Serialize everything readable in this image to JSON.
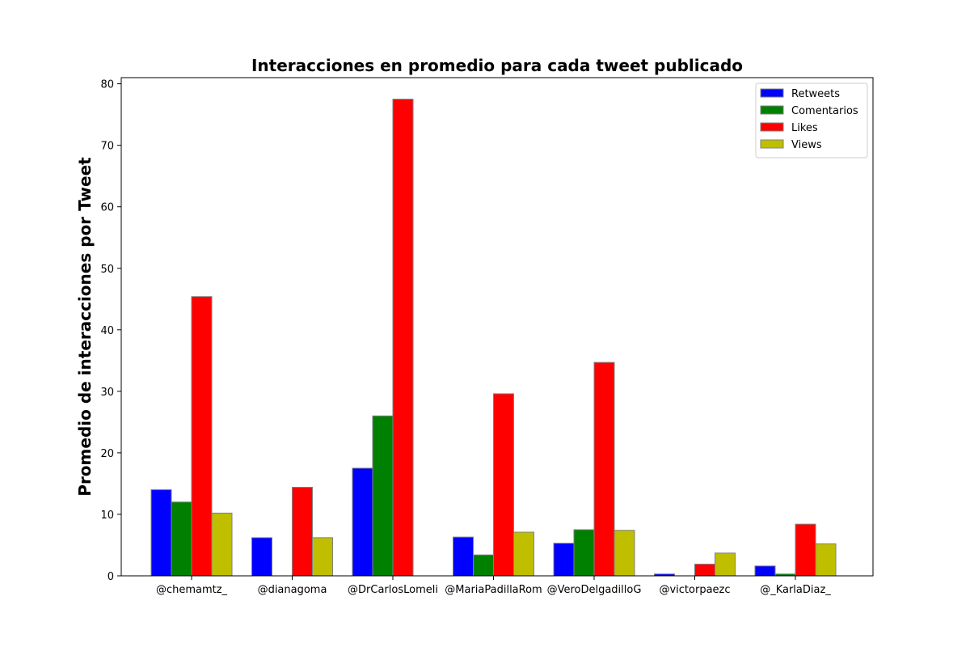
{
  "chart_data": {
    "type": "bar",
    "title": "Interacciones en promedio para cada tweet publicado",
    "xlabel": "",
    "ylabel": "Promedio de interacciones por Tweet",
    "categories": [
      "@chemamtz_",
      "@dianagoma",
      "@DrCarlosLomeli",
      "@MariaPadillaRom",
      "@VeroDelgadilloG",
      "@victorpaezc",
      "@_KarlaDiaz_"
    ],
    "series": [
      {
        "name": "Retweets",
        "color": "#0000ff",
        "values": [
          14.0,
          6.2,
          17.5,
          6.3,
          5.3,
          0.3,
          1.6
        ]
      },
      {
        "name": "Comentarios",
        "color": "#008000",
        "values": [
          12.0,
          0.0,
          26.0,
          3.4,
          7.5,
          0.0,
          0.3
        ]
      },
      {
        "name": "Likes",
        "color": "#ff0000",
        "values": [
          45.4,
          14.4,
          77.5,
          29.6,
          34.7,
          1.9,
          8.4
        ]
      },
      {
        "name": "Views",
        "color": "#bfbf00",
        "values": [
          10.2,
          6.2,
          0.0,
          7.1,
          7.4,
          3.7,
          5.2
        ]
      }
    ],
    "ylim": [
      0,
      81
    ],
    "yticks": [
      0,
      10,
      20,
      30,
      40,
      50,
      60,
      70,
      80
    ],
    "grid": false,
    "legend_position": "top-right"
  }
}
